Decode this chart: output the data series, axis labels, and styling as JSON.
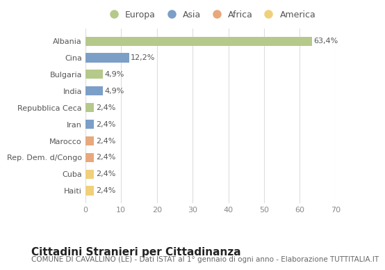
{
  "categories": [
    "Albania",
    "Cina",
    "Bulgaria",
    "India",
    "Repubblica Ceca",
    "Iran",
    "Marocco",
    "Rep. Dem. d/Congo",
    "Cuba",
    "Haiti"
  ],
  "values": [
    63.4,
    12.2,
    4.9,
    4.9,
    2.4,
    2.4,
    2.4,
    2.4,
    2.4,
    2.4
  ],
  "labels": [
    "63,4%",
    "12,2%",
    "4,9%",
    "4,9%",
    "2,4%",
    "2,4%",
    "2,4%",
    "2,4%",
    "2,4%",
    "2,4%"
  ],
  "colors": [
    "#b5c98a",
    "#7b9fc7",
    "#b5c98a",
    "#7b9fc7",
    "#b5c98a",
    "#7b9fc7",
    "#e8a87c",
    "#e8a87c",
    "#f0d07a",
    "#f0d07a"
  ],
  "legend_labels": [
    "Europa",
    "Asia",
    "Africa",
    "America"
  ],
  "legend_colors": [
    "#b5c98a",
    "#7b9fc7",
    "#e8a87c",
    "#f0d07a"
  ],
  "xlim": [
    0,
    70
  ],
  "xticks": [
    0,
    10,
    20,
    30,
    40,
    50,
    60,
    70
  ],
  "title": "Cittadini Stranieri per Cittadinanza",
  "subtitle": "COMUNE DI CAVALLINO (LE) - Dati ISTAT al 1° gennaio di ogni anno - Elaborazione TUTTITALIA.IT",
  "background_color": "#ffffff",
  "grid_color": "#dddddd",
  "bar_height": 0.55,
  "title_fontsize": 11,
  "subtitle_fontsize": 7.5,
  "label_fontsize": 8,
  "tick_fontsize": 8,
  "legend_fontsize": 9
}
